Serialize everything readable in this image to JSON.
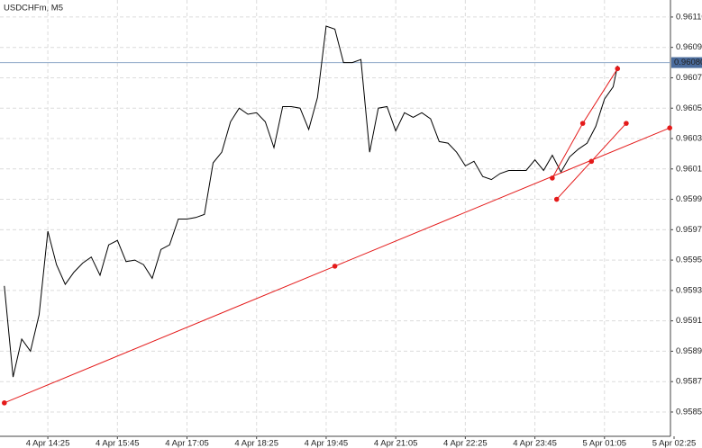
{
  "chart_data": {
    "type": "line",
    "title": "USDCHFm, M5",
    "x": [
      "4 Apr 13:35",
      "4 Apr 13:45",
      "4 Apr 13:55",
      "4 Apr 14:05",
      "4 Apr 14:15",
      "4 Apr 14:25",
      "4 Apr 14:35",
      "4 Apr 14:45",
      "4 Apr 14:55",
      "4 Apr 15:05",
      "4 Apr 15:15",
      "4 Apr 15:25",
      "4 Apr 15:35",
      "4 Apr 15:45",
      "4 Apr 15:55",
      "4 Apr 16:05",
      "4 Apr 16:15",
      "4 Apr 16:25",
      "4 Apr 16:35",
      "4 Apr 16:45",
      "4 Apr 16:55",
      "4 Apr 17:05",
      "4 Apr 17:15",
      "4 Apr 17:25",
      "4 Apr 17:35",
      "4 Apr 17:45",
      "4 Apr 17:55",
      "4 Apr 18:05",
      "4 Apr 18:15",
      "4 Apr 18:25",
      "4 Apr 18:35",
      "4 Apr 18:45",
      "4 Apr 18:55",
      "4 Apr 19:05",
      "4 Apr 19:15",
      "4 Apr 19:25",
      "4 Apr 19:35",
      "4 Apr 19:45",
      "4 Apr 19:55",
      "4 Apr 20:05",
      "4 Apr 20:15",
      "4 Apr 20:25",
      "4 Apr 20:35",
      "4 Apr 20:45",
      "4 Apr 20:55",
      "4 Apr 21:05",
      "4 Apr 21:15",
      "4 Apr 21:25",
      "4 Apr 21:35",
      "4 Apr 21:45",
      "4 Apr 21:55",
      "4 Apr 22:05",
      "4 Apr 22:15",
      "4 Apr 22:25",
      "4 Apr 22:35",
      "4 Apr 22:45",
      "4 Apr 22:55",
      "4 Apr 23:05",
      "4 Apr 23:15",
      "4 Apr 23:25",
      "4 Apr 23:35",
      "4 Apr 23:45",
      "4 Apr 23:55",
      "5 Apr 00:05",
      "5 Apr 00:15",
      "5 Apr 00:25",
      "5 Apr 00:35",
      "5 Apr 00:45",
      "5 Apr 00:55",
      "5 Apr 01:05",
      "5 Apr 01:15",
      "5 Apr 01:20"
    ],
    "values": [
      0.95933,
      0.95873,
      0.95898,
      0.9589,
      0.95914,
      0.95969,
      0.95947,
      0.95934,
      0.95942,
      0.95948,
      0.95952,
      0.9594,
      0.9596,
      0.95963,
      0.95949,
      0.9595,
      0.95947,
      0.95938,
      0.95957,
      0.9596,
      0.95977,
      0.95977,
      0.95978,
      0.9598,
      0.96014,
      0.96021,
      0.96041,
      0.9605,
      0.96046,
      0.96047,
      0.96041,
      0.96024,
      0.96051,
      0.96051,
      0.9605,
      0.96036,
      0.96057,
      0.96104,
      0.96102,
      0.9608,
      0.9608,
      0.96082,
      0.96021,
      0.9605,
      0.96051,
      0.96035,
      0.96047,
      0.96044,
      0.96047,
      0.96043,
      0.96028,
      0.96027,
      0.96021,
      0.96012,
      0.96015,
      0.96005,
      0.96003,
      0.96007,
      0.96009,
      0.96009,
      0.96009,
      0.96016,
      0.96009,
      0.96019,
      0.96008,
      0.96018,
      0.96023,
      0.96027,
      0.96038,
      0.96056,
      0.96064,
      0.96078
    ],
    "color": "#000000",
    "trendline_color": "#e41a1a",
    "trendlines": [
      {
        "x": [
          "4 Apr 13:35",
          "4 Apr 19:55",
          "5 Apr 02:20"
        ],
        "values": [
          0.95856,
          0.95946,
          0.96037
        ]
      },
      {
        "x": [
          "5 Apr 00:05",
          "5 Apr 00:40",
          "5 Apr 01:20"
        ],
        "values": [
          0.96004,
          0.9604,
          0.96076
        ]
      },
      {
        "x": [
          "5 Apr 00:10",
          "5 Apr 00:50",
          "5 Apr 01:30"
        ],
        "values": [
          0.9599,
          0.96015,
          0.9604
        ]
      }
    ],
    "current_price": {
      "value": 0.9608,
      "label": "0.96080"
    },
    "current_price_color": "#8fa8c8",
    "xlim": [
      "4 Apr 13:30",
      "5 Apr 02:25"
    ],
    "xticks": [
      "4 Apr 14:25",
      "4 Apr 15:45",
      "4 Apr 17:05",
      "4 Apr 18:25",
      "4 Apr 19:45",
      "4 Apr 21:05",
      "4 Apr 22:25",
      "4 Apr 23:45",
      "5 Apr 01:05",
      "5 Apr 02:25"
    ],
    "ylim": [
      0.95834,
      0.961212
    ],
    "yticks": [
      {
        "value": 0.9611,
        "label": "0.96110"
      },
      {
        "value": 0.9609,
        "label": "0.96090"
      },
      {
        "value": 0.9607,
        "label": "0.96070"
      },
      {
        "value": 0.9605,
        "label": "0.96050"
      },
      {
        "value": 0.9603,
        "label": "0.96030"
      },
      {
        "value": 0.9601,
        "label": "0.96010"
      },
      {
        "value": 0.9599,
        "label": "0.95990"
      },
      {
        "value": 0.9597,
        "label": "0.95970"
      },
      {
        "value": 0.9595,
        "label": "0.95950"
      },
      {
        "value": 0.9593,
        "label": "0.95930"
      },
      {
        "value": 0.9591,
        "label": "0.95910"
      },
      {
        "value": 0.9589,
        "label": "0.95890"
      },
      {
        "value": 0.9587,
        "label": "0.95870"
      },
      {
        "value": 0.9585,
        "label": "0.95850"
      }
    ],
    "grid": true
  }
}
